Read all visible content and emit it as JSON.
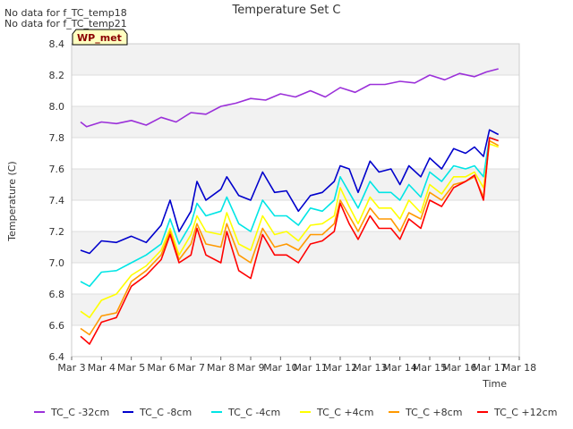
{
  "notes": [
    "No data for f_TC_temp18",
    "No data for f_TC_temp21"
  ],
  "badge": "WP_met",
  "chart_data": {
    "type": "line",
    "title": "Temperature Set C",
    "xlabel": "Time",
    "ylabel": "Temperature (C)",
    "ylim": [
      6.4,
      8.4
    ],
    "yticks": [
      "6.4",
      "6.6",
      "6.8",
      "7.0",
      "7.2",
      "7.4",
      "7.6",
      "7.8",
      "8.0",
      "8.2",
      "8.4"
    ],
    "xticks": [
      "Mar 3",
      "Mar 4",
      "Mar 5",
      "Mar 6",
      "Mar 7",
      "Mar 8",
      "Mar 9",
      "Mar 10",
      "Mar 11",
      "Mar 12",
      "Mar 13",
      "Mar 14",
      "Mar 15",
      "Mar 16",
      "Mar 17",
      "Mar 18"
    ],
    "x_day_range": [
      3,
      18
    ],
    "grid": true,
    "legend_position": "bottom",
    "series": [
      {
        "name": "TC_C -32cm",
        "color": "#9b30d9",
        "x": [
          3.3,
          3.5,
          4.0,
          4.5,
          5.0,
          5.5,
          6.0,
          6.5,
          7.0,
          7.5,
          8.0,
          8.5,
          9.0,
          9.5,
          10.0,
          10.5,
          11.0,
          11.5,
          12.0,
          12.5,
          13.0,
          13.5,
          14.0,
          14.5,
          15.0,
          15.5,
          16.0,
          16.5,
          16.9,
          17.3
        ],
        "y": [
          7.9,
          7.87,
          7.9,
          7.89,
          7.91,
          7.88,
          7.93,
          7.9,
          7.96,
          7.95,
          8.0,
          8.02,
          8.05,
          8.04,
          8.08,
          8.06,
          8.1,
          8.06,
          8.12,
          8.09,
          8.14,
          8.14,
          8.16,
          8.15,
          8.2,
          8.17,
          8.21,
          8.19,
          8.22,
          8.24
        ]
      },
      {
        "name": "TC_C -8cm",
        "color": "#0000cc",
        "x": [
          3.3,
          3.6,
          4.0,
          4.5,
          5.0,
          5.5,
          6.0,
          6.3,
          6.6,
          7.0,
          7.2,
          7.5,
          8.0,
          8.2,
          8.6,
          9.0,
          9.4,
          9.8,
          10.2,
          10.6,
          11.0,
          11.4,
          11.8,
          12.0,
          12.3,
          12.6,
          13.0,
          13.3,
          13.7,
          14.0,
          14.3,
          14.7,
          15.0,
          15.4,
          15.8,
          16.2,
          16.5,
          16.8,
          17.0,
          17.3
        ],
        "y": [
          7.08,
          7.06,
          7.14,
          7.13,
          7.17,
          7.13,
          7.24,
          7.4,
          7.2,
          7.33,
          7.52,
          7.4,
          7.47,
          7.55,
          7.43,
          7.4,
          7.58,
          7.45,
          7.46,
          7.33,
          7.43,
          7.45,
          7.52,
          7.62,
          7.6,
          7.45,
          7.65,
          7.58,
          7.6,
          7.5,
          7.62,
          7.55,
          7.67,
          7.6,
          7.73,
          7.7,
          7.74,
          7.68,
          7.85,
          7.82
        ]
      },
      {
        "name": "TC_C -4cm",
        "color": "#00e5e5",
        "x": [
          3.3,
          3.6,
          4.0,
          4.5,
          5.0,
          5.5,
          6.0,
          6.3,
          6.6,
          7.0,
          7.2,
          7.5,
          8.0,
          8.2,
          8.6,
          9.0,
          9.4,
          9.8,
          10.2,
          10.6,
          11.0,
          11.4,
          11.8,
          12.0,
          12.3,
          12.6,
          13.0,
          13.3,
          13.7,
          14.0,
          14.3,
          14.7,
          15.0,
          15.4,
          15.8,
          16.2,
          16.5,
          16.8,
          17.0,
          17.3
        ],
        "y": [
          6.88,
          6.85,
          6.94,
          6.95,
          7.0,
          7.05,
          7.12,
          7.28,
          7.12,
          7.25,
          7.38,
          7.3,
          7.33,
          7.42,
          7.25,
          7.2,
          7.4,
          7.3,
          7.3,
          7.24,
          7.35,
          7.33,
          7.4,
          7.55,
          7.45,
          7.35,
          7.52,
          7.45,
          7.45,
          7.4,
          7.5,
          7.42,
          7.58,
          7.52,
          7.62,
          7.6,
          7.62,
          7.55,
          7.8,
          7.78
        ]
      },
      {
        "name": "TC_C +4cm",
        "color": "#ffff00",
        "x": [
          3.3,
          3.6,
          4.0,
          4.5,
          5.0,
          5.5,
          6.0,
          6.3,
          6.6,
          7.0,
          7.2,
          7.5,
          8.0,
          8.2,
          8.6,
          9.0,
          9.4,
          9.8,
          10.2,
          10.6,
          11.0,
          11.4,
          11.8,
          12.0,
          12.3,
          12.6,
          13.0,
          13.3,
          13.7,
          14.0,
          14.3,
          14.7,
          15.0,
          15.4,
          15.8,
          16.2,
          16.5,
          16.8,
          17.0,
          17.3
        ],
        "y": [
          6.69,
          6.65,
          6.76,
          6.8,
          6.92,
          6.98,
          7.08,
          7.22,
          7.05,
          7.18,
          7.3,
          7.2,
          7.18,
          7.32,
          7.12,
          7.08,
          7.3,
          7.18,
          7.2,
          7.14,
          7.24,
          7.25,
          7.3,
          7.48,
          7.36,
          7.25,
          7.42,
          7.35,
          7.35,
          7.28,
          7.4,
          7.32,
          7.5,
          7.44,
          7.55,
          7.55,
          7.58,
          7.48,
          7.76,
          7.74
        ]
      },
      {
        "name": "TC_C +8cm",
        "color": "#ff9900",
        "x": [
          3.3,
          3.6,
          4.0,
          4.5,
          5.0,
          5.5,
          6.0,
          6.3,
          6.6,
          7.0,
          7.2,
          7.5,
          8.0,
          8.2,
          8.6,
          9.0,
          9.4,
          9.8,
          10.2,
          10.6,
          11.0,
          11.4,
          11.8,
          12.0,
          12.3,
          12.6,
          13.0,
          13.3,
          13.7,
          14.0,
          14.3,
          14.7,
          15.0,
          15.4,
          15.8,
          16.2,
          16.5,
          16.8,
          17.0,
          17.3
        ],
        "y": [
          6.58,
          6.54,
          6.66,
          6.68,
          6.88,
          6.95,
          7.05,
          7.2,
          7.02,
          7.12,
          7.25,
          7.12,
          7.1,
          7.25,
          7.05,
          7.0,
          7.22,
          7.1,
          7.12,
          7.08,
          7.18,
          7.18,
          7.25,
          7.4,
          7.3,
          7.2,
          7.35,
          7.28,
          7.28,
          7.2,
          7.32,
          7.28,
          7.45,
          7.4,
          7.5,
          7.52,
          7.55,
          7.42,
          7.78,
          7.75
        ]
      },
      {
        "name": "TC_C +12cm",
        "color": "#ff0000",
        "x": [
          3.3,
          3.6,
          4.0,
          4.5,
          5.0,
          5.5,
          6.0,
          6.3,
          6.6,
          7.0,
          7.2,
          7.5,
          8.0,
          8.2,
          8.6,
          9.0,
          9.4,
          9.8,
          10.2,
          10.6,
          11.0,
          11.4,
          11.8,
          12.0,
          12.3,
          12.6,
          13.0,
          13.3,
          13.7,
          14.0,
          14.3,
          14.7,
          15.0,
          15.4,
          15.8,
          16.2,
          16.5,
          16.8,
          17.0,
          17.3
        ],
        "y": [
          6.53,
          6.48,
          6.62,
          6.65,
          6.85,
          6.92,
          7.02,
          7.18,
          7.0,
          7.05,
          7.22,
          7.05,
          7.0,
          7.2,
          6.95,
          6.9,
          7.18,
          7.05,
          7.05,
          7.0,
          7.12,
          7.14,
          7.2,
          7.38,
          7.25,
          7.15,
          7.3,
          7.22,
          7.22,
          7.15,
          7.28,
          7.22,
          7.4,
          7.36,
          7.48,
          7.52,
          7.56,
          7.4,
          7.8,
          7.78
        ]
      }
    ]
  }
}
